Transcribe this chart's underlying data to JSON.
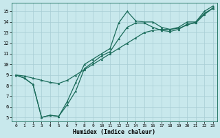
{
  "xlabel": "Humidex (Indice chaleur)",
  "background_color": "#c8e8ec",
  "grid_color": "#a8cdd4",
  "line_color": "#1a6b5a",
  "xlim": [
    -0.5,
    23.5
  ],
  "ylim": [
    4.6,
    15.8
  ],
  "xticks": [
    0,
    1,
    2,
    3,
    4,
    5,
    6,
    7,
    8,
    9,
    10,
    11,
    12,
    13,
    14,
    15,
    16,
    17,
    18,
    19,
    20,
    21,
    22,
    23
  ],
  "yticks": [
    5,
    6,
    7,
    8,
    9,
    10,
    11,
    12,
    13,
    14,
    15
  ],
  "series1_x": [
    0,
    1,
    2,
    3,
    4,
    5,
    6,
    7,
    8,
    9,
    10,
    11,
    12,
    13,
    14,
    15,
    16,
    17,
    18,
    19,
    20,
    21,
    22,
    23
  ],
  "series1_y": [
    9.0,
    8.7,
    8.1,
    5.0,
    5.2,
    5.1,
    6.5,
    8.3,
    10.0,
    10.5,
    11.0,
    11.5,
    13.9,
    15.0,
    14.1,
    14.0,
    14.0,
    13.5,
    13.3,
    13.5,
    14.0,
    14.0,
    15.0,
    15.5
  ],
  "series2_x": [
    0,
    1,
    2,
    3,
    4,
    5,
    6,
    7,
    8,
    9,
    10,
    11,
    12,
    13,
    14,
    15,
    16,
    17,
    18,
    19,
    20,
    21,
    22,
    23
  ],
  "series2_y": [
    9.0,
    8.7,
    8.1,
    5.0,
    5.2,
    5.1,
    6.2,
    7.5,
    9.6,
    10.2,
    10.8,
    11.2,
    12.4,
    13.5,
    13.9,
    13.9,
    13.5,
    13.2,
    13.1,
    13.3,
    13.8,
    13.9,
    14.7,
    15.3
  ],
  "series3_x": [
    0,
    1,
    2,
    3,
    4,
    5,
    6,
    7,
    8,
    9,
    10,
    11,
    12,
    13,
    14,
    15,
    16,
    17,
    18,
    19,
    20,
    21,
    22,
    23
  ],
  "series3_y": [
    9.0,
    8.9,
    8.7,
    8.5,
    8.3,
    8.2,
    8.5,
    9.0,
    9.5,
    10.0,
    10.5,
    11.0,
    11.5,
    12.0,
    12.5,
    13.0,
    13.2,
    13.3,
    13.3,
    13.4,
    13.7,
    14.0,
    14.8,
    15.3
  ]
}
